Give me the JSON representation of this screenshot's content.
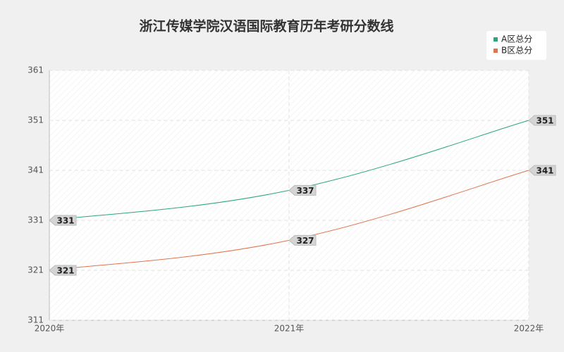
{
  "chart_data": {
    "type": "line",
    "title": "浙江传媒学院汉语国际教育历年考研分数线",
    "categories": [
      "2020年",
      "2021年",
      "2022年"
    ],
    "series": [
      {
        "name": "A区总分",
        "color": "#2aa57c",
        "values": [
          331,
          337,
          351
        ]
      },
      {
        "name": "B区总分",
        "color": "#e0734c",
        "values": [
          321,
          327,
          341
        ]
      }
    ],
    "ylim": [
      311,
      361
    ],
    "yticks": [
      311,
      321,
      331,
      341,
      351,
      361
    ],
    "grid": true,
    "legend": "top-right"
  }
}
